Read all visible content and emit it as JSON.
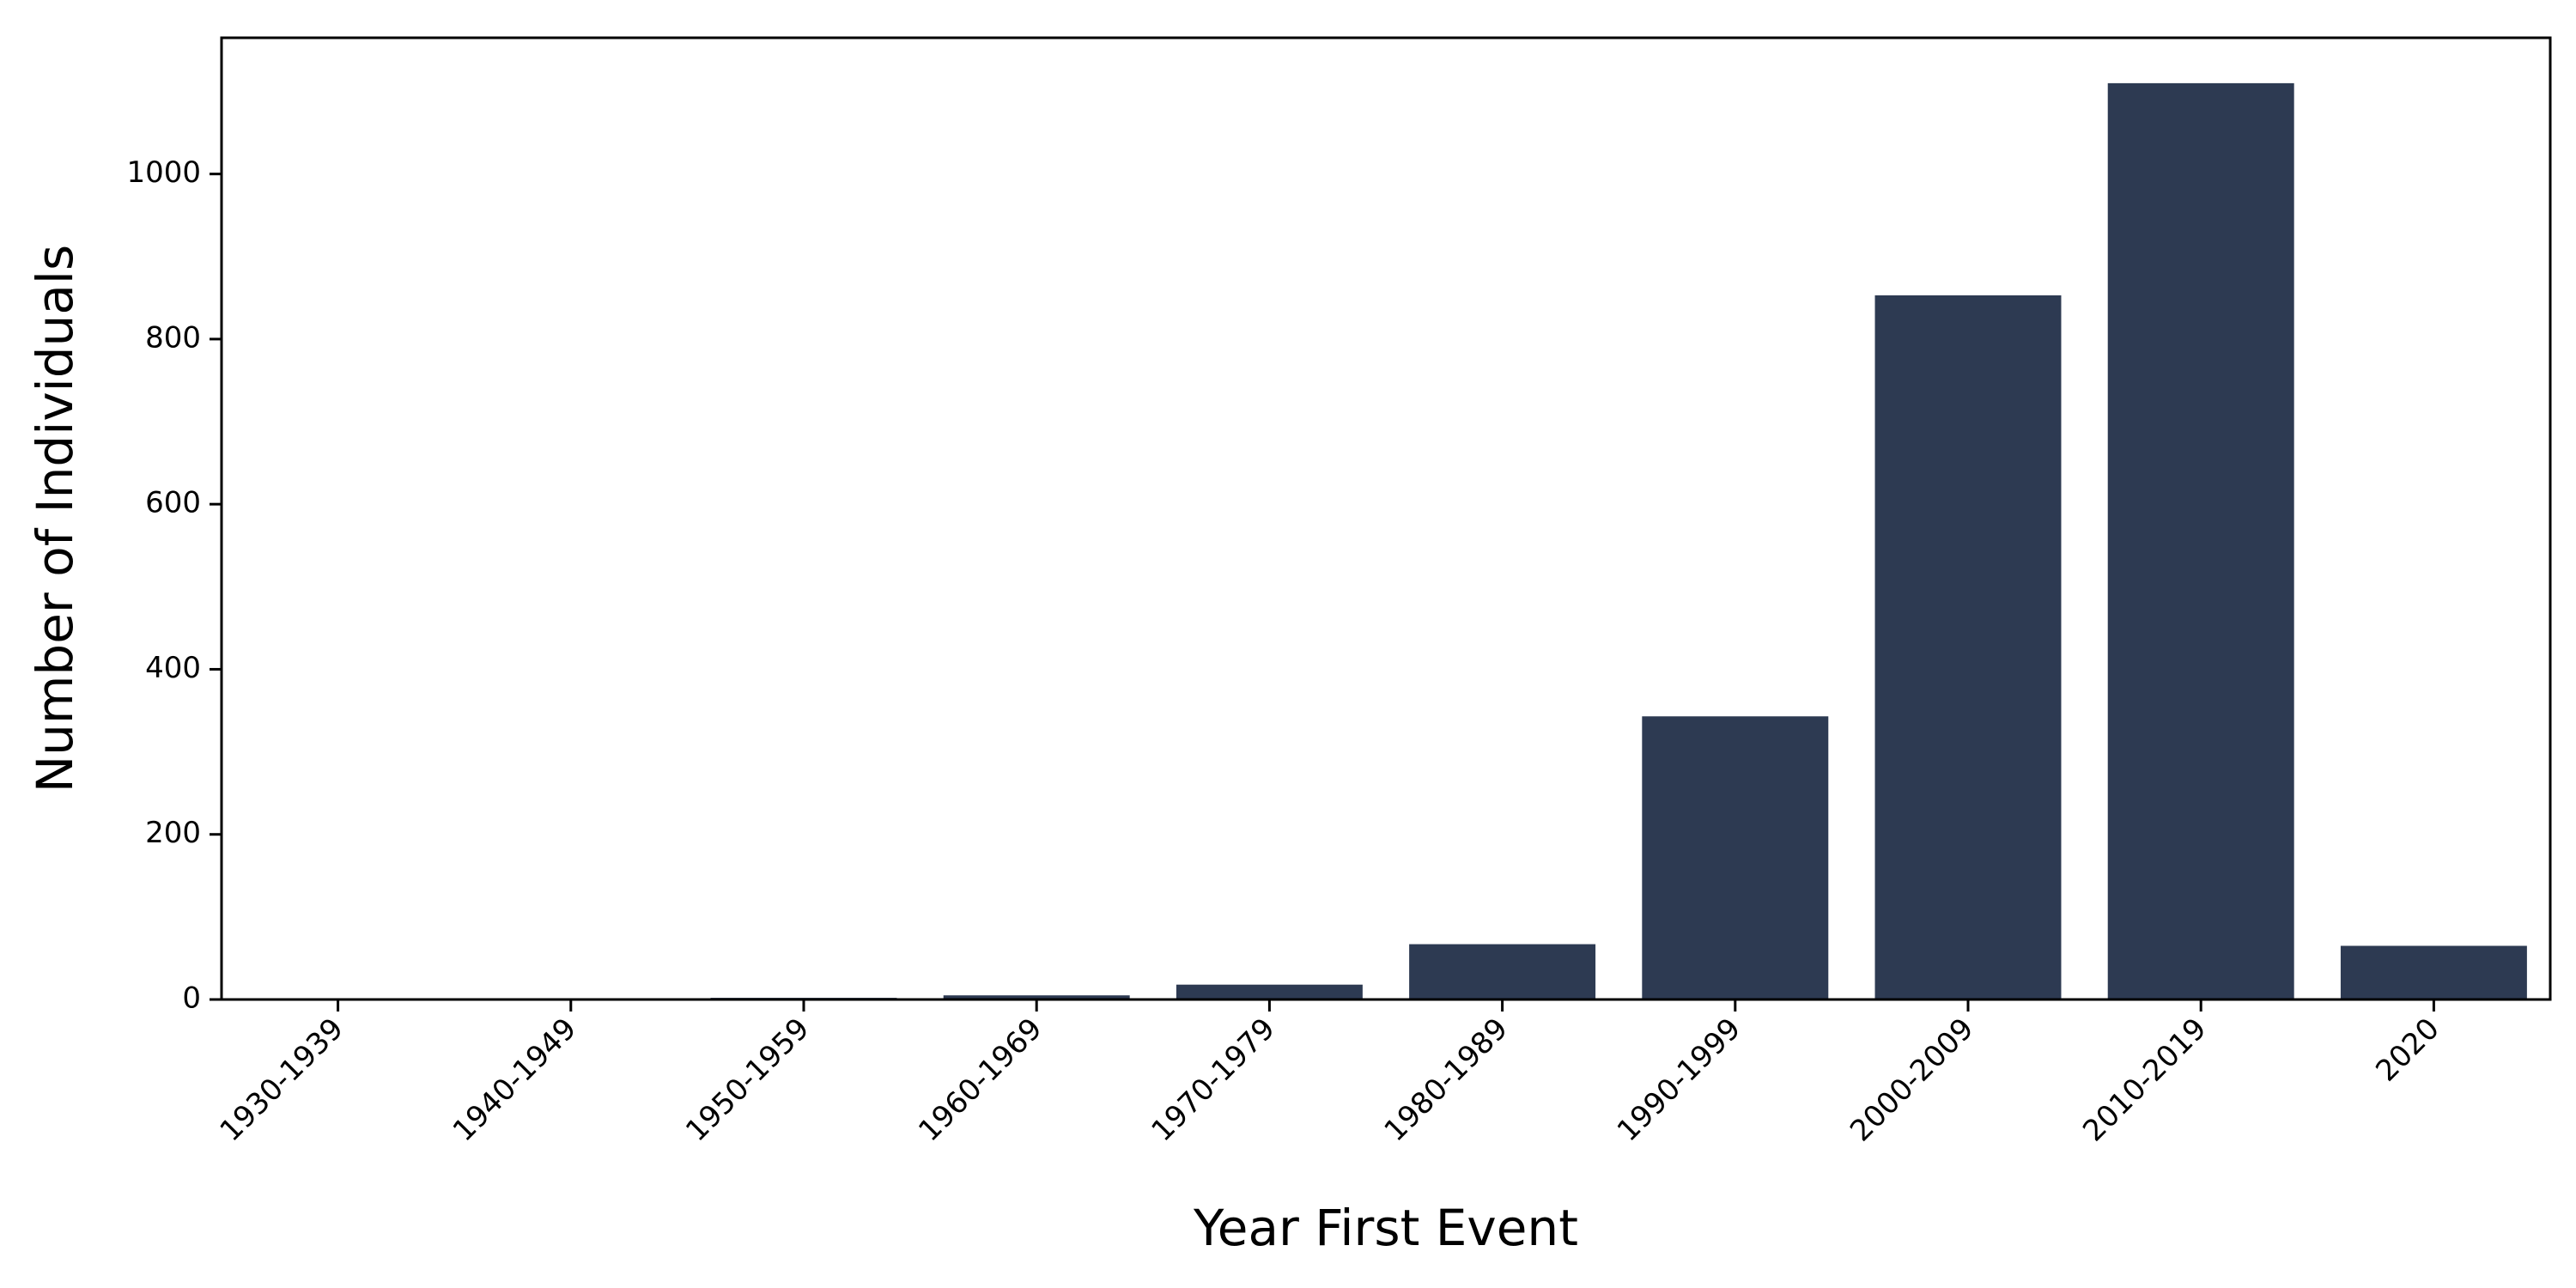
{
  "chart_data": {
    "type": "bar",
    "title": "",
    "xlabel": "Year First Event",
    "ylabel": "Number of Individuals",
    "categories": [
      "1930-1939",
      "1940-1949",
      "1950-1959",
      "1960-1969",
      "1970-1979",
      "1980-1989",
      "1990-1999",
      "2000-2009",
      "2010-2019",
      "2020"
    ],
    "values": [
      1,
      1,
      2,
      5,
      18,
      67,
      343,
      853,
      1110,
      65
    ],
    "ylim": [
      0,
      1165
    ],
    "yticks": [
      0,
      200,
      400,
      600,
      800,
      1000
    ],
    "bar_color": "#2d3a52",
    "grid": false,
    "legend": "none"
  }
}
